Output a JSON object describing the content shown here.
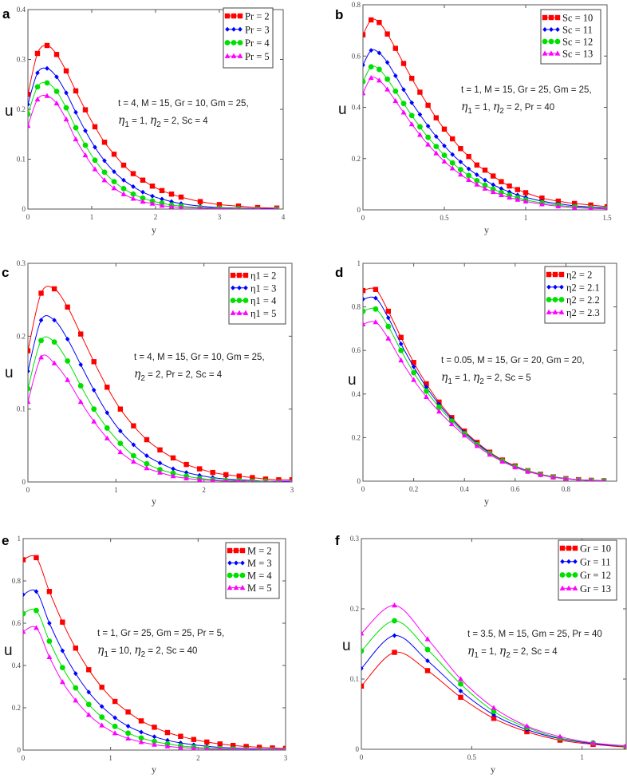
{
  "colors": {
    "s0": "#ff0000",
    "s1": "#0000ff",
    "s2": "#00e000",
    "s3": "#ff00ff"
  },
  "eta_symbol": "η",
  "chart_data": [
    {
      "type": "line",
      "panel": "a",
      "xlabel": "y",
      "ylabel": "u",
      "xlim": [
        0,
        4
      ],
      "ylim": [
        0,
        0.4
      ],
      "xticks": [
        "0",
        "1",
        "2",
        "3",
        "4"
      ],
      "yticks": [
        "0",
        "0.1",
        "0.2",
        "0.3",
        "0.4"
      ],
      "annotation": {
        "line1": "t = 4, M = 15, Gr = 10, Gm = 25,",
        "etas": [
          {
            "idx": "1",
            "val": "= 1,"
          },
          {
            "idx": "2",
            "val": "=  2,"
          }
        ],
        "tail": "Sc = 4"
      },
      "x": [
        0,
        0.15,
        0.3,
        0.45,
        0.6,
        0.75,
        0.9,
        1.05,
        1.2,
        1.35,
        1.5,
        1.65,
        1.8,
        1.95,
        2.1,
        2.25,
        2.4,
        2.7,
        3.0,
        3.3,
        3.6,
        3.9
      ],
      "series": [
        {
          "name": "Pr = 2",
          "values": [
            0.23,
            0.312,
            0.328,
            0.31,
            0.277,
            0.237,
            0.199,
            0.165,
            0.134,
            0.11,
            0.088,
            0.071,
            0.058,
            0.046,
            0.037,
            0.03,
            0.024,
            0.015,
            0.009,
            0.006,
            0.003,
            0.002
          ]
        },
        {
          "name": "Pr = 3",
          "values": [
            0.21,
            0.273,
            0.282,
            0.265,
            0.233,
            0.194,
            0.157,
            0.124,
            0.097,
            0.075,
            0.058,
            0.045,
            0.034,
            0.026,
            0.02,
            0.015,
            0.011,
            0.006,
            0.003,
            0.002,
            0.001,
            0.001
          ]
        },
        {
          "name": "Pr = 4",
          "values": [
            0.19,
            0.245,
            0.253,
            0.236,
            0.203,
            0.163,
            0.128,
            0.098,
            0.074,
            0.055,
            0.041,
            0.03,
            0.022,
            0.016,
            0.012,
            0.008,
            0.006,
            0.003,
            0.002,
            0.001,
            0,
            0
          ]
        },
        {
          "name": "Pr = 5",
          "values": [
            0.167,
            0.22,
            0.227,
            0.212,
            0.18,
            0.14,
            0.108,
            0.08,
            0.058,
            0.042,
            0.03,
            0.021,
            0.015,
            0.011,
            0.007,
            0.005,
            0.003,
            0.002,
            0.001,
            0,
            0,
            0
          ]
        }
      ]
    },
    {
      "type": "line",
      "panel": "b",
      "xlabel": "y",
      "ylabel": "u",
      "xlim": [
        0,
        1.5
      ],
      "ylim": [
        0,
        0.8
      ],
      "xticks": [
        "0",
        "0.5",
        "1",
        "1.5"
      ],
      "yticks": [
        "0",
        "0.2",
        "0.4",
        "0.6",
        "0.8"
      ],
      "annotation": {
        "line1": "t = 1, M = 15, Gr = 25, Gm = 25,",
        "etas": [
          {
            "idx": "1",
            "val": "= 1,"
          },
          {
            "idx": "2",
            "val": "=  2,"
          }
        ],
        "tail": "Pr = 40"
      },
      "x": [
        0,
        0.05,
        0.1,
        0.15,
        0.2,
        0.25,
        0.3,
        0.35,
        0.4,
        0.45,
        0.5,
        0.55,
        0.6,
        0.65,
        0.7,
        0.75,
        0.8,
        0.85,
        0.9,
        0.95,
        1.0,
        1.1,
        1.2,
        1.3,
        1.4,
        1.5
      ],
      "series": [
        {
          "name": "Sc = 10",
          "values": [
            0.683,
            0.741,
            0.731,
            0.686,
            0.63,
            0.571,
            0.513,
            0.459,
            0.408,
            0.359,
            0.315,
            0.277,
            0.239,
            0.208,
            0.175,
            0.155,
            0.132,
            0.11,
            0.093,
            0.079,
            0.067,
            0.046,
            0.034,
            0.025,
            0.019,
            0.012
          ]
        },
        {
          "name": "Sc = 11",
          "values": [
            0.565,
            0.622,
            0.612,
            0.575,
            0.523,
            0.469,
            0.418,
            0.372,
            0.327,
            0.286,
            0.25,
            0.216,
            0.187,
            0.16,
            0.137,
            0.116,
            0.098,
            0.083,
            0.07,
            0.058,
            0.049,
            0.034,
            0.024,
            0.016,
            0.011,
            0.008
          ]
        },
        {
          "name": "Sc = 12",
          "values": [
            0.5,
            0.558,
            0.548,
            0.51,
            0.463,
            0.415,
            0.368,
            0.324,
            0.283,
            0.247,
            0.213,
            0.183,
            0.157,
            0.134,
            0.114,
            0.096,
            0.081,
            0.068,
            0.057,
            0.047,
            0.039,
            0.027,
            0.018,
            0.012,
            0.008,
            0.005
          ]
        },
        {
          "name": "Sc = 13",
          "values": [
            0.455,
            0.515,
            0.505,
            0.47,
            0.425,
            0.38,
            0.334,
            0.293,
            0.255,
            0.221,
            0.189,
            0.162,
            0.138,
            0.117,
            0.099,
            0.083,
            0.07,
            0.058,
            0.048,
            0.04,
            0.033,
            0.022,
            0.014,
            0.009,
            0.006,
            0.004
          ]
        }
      ]
    },
    {
      "type": "line",
      "panel": "c",
      "xlabel": "y",
      "ylabel": "u",
      "xlim": [
        0,
        3
      ],
      "ylim": [
        0,
        0.3
      ],
      "xticks": [
        "0",
        "1",
        "2",
        "3"
      ],
      "yticks": [
        "0",
        "0.1",
        "0.2",
        "0.3"
      ],
      "annotation": {
        "line1": "t = 4, M = 15, Gr = 10, Gm = 25,",
        "etas": [
          {
            "idx": "2",
            "val": "=  2,"
          }
        ],
        "tail": "Pr = 2,  Sc = 4"
      },
      "x": [
        0,
        0.15,
        0.3,
        0.45,
        0.6,
        0.75,
        0.9,
        1.05,
        1.2,
        1.35,
        1.5,
        1.65,
        1.8,
        1.95,
        2.1,
        2.25,
        2.4,
        2.55,
        2.7,
        2.85,
        3.0
      ],
      "series": [
        {
          "name": "η1 = 2",
          "values": [
            0.18,
            0.259,
            0.265,
            0.24,
            0.203,
            0.165,
            0.13,
            0.1,
            0.077,
            0.058,
            0.044,
            0.033,
            0.024,
            0.018,
            0.013,
            0.01,
            0.008,
            0.006,
            0.004,
            0.003,
            0.003
          ]
        },
        {
          "name": "η1 = 3",
          "values": [
            0.152,
            0.222,
            0.222,
            0.196,
            0.161,
            0.126,
            0.095,
            0.07,
            0.051,
            0.036,
            0.026,
            0.018,
            0.013,
            0.009,
            0.006,
            0.004,
            0.003,
            0.002,
            0.001,
            0.001,
            0.001
          ]
        },
        {
          "name": "η1 = 4",
          "values": [
            0.128,
            0.194,
            0.192,
            0.166,
            0.132,
            0.1,
            0.074,
            0.053,
            0.036,
            0.025,
            0.017,
            0.012,
            0.008,
            0.005,
            0.003,
            0.002,
            0.002,
            0.001,
            0.001,
            0,
            0
          ]
        },
        {
          "name": "η1 = 5",
          "values": [
            0.11,
            0.171,
            0.163,
            0.14,
            0.11,
            0.083,
            0.06,
            0.041,
            0.028,
            0.019,
            0.013,
            0.008,
            0.005,
            0.003,
            0.002,
            0.001,
            0.001,
            0,
            0,
            0,
            0
          ]
        }
      ]
    },
    {
      "type": "line",
      "panel": "d",
      "xlabel": "y",
      "ylabel": "u",
      "xlim": [
        0,
        1
      ],
      "ylim": [
        0,
        1
      ],
      "xticks": [
        "0",
        "0.2",
        "0.4",
        "0.6",
        "0.8"
      ],
      "yticks": [
        "0",
        "0.2",
        "0.4",
        "0.6",
        "0.8",
        "1"
      ],
      "annotation": {
        "line1": "t = 0.05, M = 15, Gr = 20, Gm = 20,",
        "etas": [
          {
            "idx": "1",
            "val": "= 1,"
          },
          {
            "idx": "2",
            "val": "=  2,"
          }
        ],
        "tail": "Sc = 5"
      },
      "x": [
        0,
        0.05,
        0.1,
        0.15,
        0.2,
        0.25,
        0.3,
        0.35,
        0.4,
        0.45,
        0.5,
        0.55,
        0.6,
        0.65,
        0.7,
        0.75,
        0.8,
        0.85,
        0.9,
        0.95
      ],
      "series": [
        {
          "name": "η2 = 2",
          "values": [
            0.875,
            0.88,
            0.78,
            0.66,
            0.545,
            0.447,
            0.363,
            0.292,
            0.23,
            0.178,
            0.133,
            0.097,
            0.07,
            0.048,
            0.032,
            0.02,
            0.012,
            0.007,
            0.004,
            0.002
          ]
        },
        {
          "name": "η2 = 2.1",
          "values": [
            0.835,
            0.84,
            0.75,
            0.63,
            0.525,
            0.432,
            0.353,
            0.285,
            0.225,
            0.173,
            0.13,
            0.095,
            0.068,
            0.047,
            0.031,
            0.02,
            0.012,
            0.007,
            0.004,
            0.002
          ]
        },
        {
          "name": "η2 = 2.2",
          "values": [
            0.78,
            0.79,
            0.71,
            0.6,
            0.498,
            0.413,
            0.34,
            0.276,
            0.218,
            0.168,
            0.127,
            0.093,
            0.066,
            0.046,
            0.03,
            0.019,
            0.011,
            0.006,
            0.003,
            0.002
          ]
        },
        {
          "name": "η2 = 2.3",
          "values": [
            0.72,
            0.73,
            0.655,
            0.555,
            0.465,
            0.387,
            0.32,
            0.262,
            0.21,
            0.162,
            0.122,
            0.09,
            0.064,
            0.044,
            0.029,
            0.018,
            0.011,
            0.006,
            0.003,
            0.002
          ]
        }
      ]
    },
    {
      "type": "line",
      "panel": "e",
      "xlabel": "y",
      "ylabel": "u",
      "xlim": [
        0,
        3
      ],
      "ylim": [
        0,
        1
      ],
      "xticks": [
        "0",
        "1",
        "2",
        "3"
      ],
      "yticks": [
        "0",
        "0.2",
        "0.4",
        "0.6",
        "0.8",
        "1"
      ],
      "annotation": {
        "line1": "t = 1, Gr = 25, Gm = 25, Pr = 5,",
        "etas": [
          {
            "idx": "1",
            "val": "= 10,"
          },
          {
            "idx": "2",
            "val": "=  2,"
          }
        ],
        "tail": "Sc = 40"
      },
      "x": [
        0,
        0.15,
        0.3,
        0.45,
        0.6,
        0.75,
        0.9,
        1.05,
        1.2,
        1.35,
        1.5,
        1.65,
        1.8,
        1.95,
        2.1,
        2.25,
        2.4,
        2.55,
        2.7,
        2.85,
        3.0
      ],
      "series": [
        {
          "name": "M = 2",
          "values": [
            0.9,
            0.91,
            0.75,
            0.605,
            0.482,
            0.38,
            0.297,
            0.23,
            0.18,
            0.138,
            0.108,
            0.083,
            0.065,
            0.05,
            0.038,
            0.029,
            0.022,
            0.017,
            0.013,
            0.01,
            0.008
          ]
        },
        {
          "name": "M = 3",
          "values": [
            0.735,
            0.75,
            0.6,
            0.47,
            0.362,
            0.274,
            0.206,
            0.153,
            0.113,
            0.085,
            0.063,
            0.046,
            0.034,
            0.025,
            0.018,
            0.013,
            0.01,
            0.007,
            0.005,
            0.004,
            0.003
          ]
        },
        {
          "name": "M = 4",
          "values": [
            0.645,
            0.66,
            0.515,
            0.39,
            0.294,
            0.216,
            0.156,
            0.112,
            0.08,
            0.057,
            0.041,
            0.029,
            0.02,
            0.014,
            0.01,
            0.007,
            0.005,
            0.003,
            0.002,
            0.002,
            0.001
          ]
        },
        {
          "name": "M = 5",
          "values": [
            0.56,
            0.578,
            0.44,
            0.322,
            0.235,
            0.167,
            0.117,
            0.08,
            0.055,
            0.038,
            0.026,
            0.018,
            0.012,
            0.008,
            0.005,
            0.004,
            0.002,
            0.002,
            0.001,
            0.001,
            0.001
          ]
        }
      ]
    },
    {
      "type": "line",
      "panel": "f",
      "xlabel": "y",
      "ylabel": "u",
      "xlim": [
        0,
        1.2
      ],
      "ylim": [
        0,
        0.3
      ],
      "xticks": [
        "0",
        "0.5",
        "1"
      ],
      "yticks": [
        "0",
        "0.1",
        "0.2",
        "0.3"
      ],
      "annotation": {
        "line1": "t = 3.5, M = 15, Gm = 25, Pr = 40",
        "etas": [
          {
            "idx": "1",
            "val": "= 1,"
          },
          {
            "idx": "2",
            "val": "=  2,"
          }
        ],
        "tail": "Sc = 4"
      },
      "x": [
        0,
        0.15,
        0.3,
        0.45,
        0.6,
        0.75,
        0.9,
        1.05,
        1.2
      ],
      "series": [
        {
          "name": "Gr = 10",
          "values": [
            0.09,
            0.138,
            0.112,
            0.074,
            0.044,
            0.025,
            0.013,
            0.007,
            0.003
          ]
        },
        {
          "name": "Gr = 11",
          "values": [
            0.115,
            0.162,
            0.126,
            0.083,
            0.049,
            0.028,
            0.015,
            0.008,
            0.004
          ]
        },
        {
          "name": "Gr = 12",
          "values": [
            0.14,
            0.183,
            0.142,
            0.093,
            0.054,
            0.031,
            0.016,
            0.009,
            0.004
          ]
        },
        {
          "name": "Gr = 13",
          "values": [
            0.165,
            0.205,
            0.157,
            0.1,
            0.059,
            0.033,
            0.018,
            0.009,
            0.005
          ]
        }
      ]
    }
  ]
}
